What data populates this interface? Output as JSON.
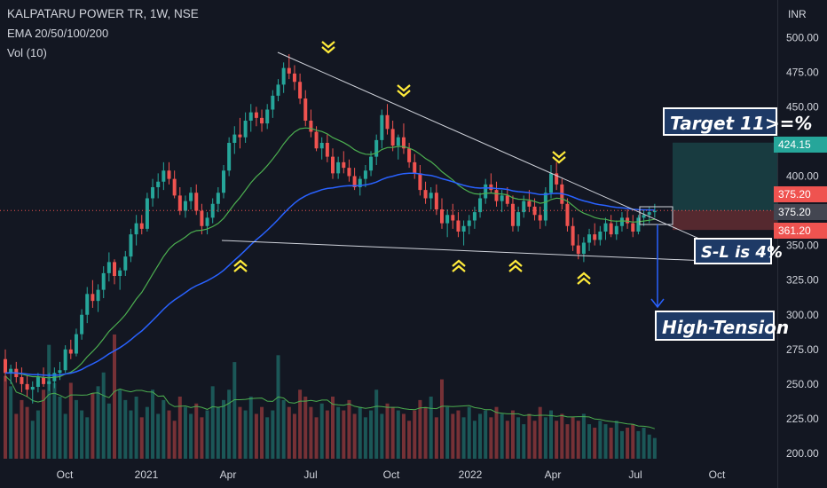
{
  "header": {
    "symbol_line": "KALPATARU POWER TR, 1W, NSE",
    "indicator_line": "EMA 20/50/100/200",
    "volume_line": "Vol (10)"
  },
  "annotations": {
    "target": "Target 11>=%",
    "stop_loss": "S-L is 4%",
    "news": "High-Tension"
  },
  "price_tags": [
    {
      "value": 424.15,
      "label": "424.15",
      "color": "#26a69a"
    },
    {
      "value": 375.2,
      "label": "375.20",
      "color": "#ef5350"
    },
    {
      "value": 375.2,
      "label": "375.20",
      "color": "#434651"
    },
    {
      "value": 361.2,
      "label": "361.20",
      "color": "#ef5350"
    }
  ],
  "colors": {
    "up": "#26a69a",
    "down": "#ef5350",
    "ema20": "#4caf50",
    "ema50": "#2962ff",
    "trendline": "#d1d4dc",
    "marker": "#ffeb3b",
    "target_zone": "#26a69a",
    "stop_zone": "#ef5350"
  },
  "chart_data": {
    "type": "candlestick",
    "title": "KALPATARU POWER TR, 1W, NSE",
    "y_axis_label": "INR",
    "y_ticks": [
      "500.00",
      "475.00",
      "450.00",
      "425.00",
      "400.00",
      "375.00",
      "350.00",
      "325.00",
      "300.00",
      "275.00",
      "250.00",
      "225.00",
      "200.00"
    ],
    "ylim": [
      200,
      500
    ],
    "x_ticks": [
      "Oct",
      "2021",
      "Apr",
      "Jul",
      "Oct",
      "2022",
      "Apr",
      "Jul",
      "Oct"
    ],
    "series": [
      {
        "name": "",
        "ohlc": [
          [
            268,
            275,
            252,
            258
          ],
          [
            258,
            264,
            250,
            261
          ],
          [
            261,
            266,
            251,
            255
          ],
          [
            255,
            262,
            244,
            250
          ],
          [
            250,
            256,
            241,
            246
          ],
          [
            246,
            252,
            236,
            248
          ],
          [
            248,
            258,
            244,
            255
          ],
          [
            255,
            262,
            248,
            250
          ],
          [
            250,
            258,
            245,
            252
          ],
          [
            252,
            262,
            247,
            258
          ],
          [
            258,
            266,
            253,
            260
          ],
          [
            260,
            278,
            258,
            275
          ],
          [
            275,
            282,
            268,
            272
          ],
          [
            272,
            290,
            270,
            286
          ],
          [
            286,
            304,
            282,
            300
          ],
          [
            300,
            320,
            294,
            315
          ],
          [
            315,
            325,
            305,
            310
          ],
          [
            310,
            322,
            302,
            318
          ],
          [
            318,
            335,
            312,
            330
          ],
          [
            330,
            345,
            324,
            338
          ],
          [
            338,
            340,
            322,
            328
          ],
          [
            328,
            334,
            318,
            332
          ],
          [
            332,
            346,
            328,
            342
          ],
          [
            342,
            362,
            338,
            358
          ],
          [
            358,
            372,
            350,
            366
          ],
          [
            366,
            372,
            358,
            362
          ],
          [
            362,
            388,
            360,
            384
          ],
          [
            384,
            398,
            378,
            392
          ],
          [
            392,
            402,
            384,
            396
          ],
          [
            396,
            410,
            390,
            404
          ],
          [
            404,
            410,
            394,
            398
          ],
          [
            398,
            404,
            384,
            386
          ],
          [
            386,
            392,
            372,
            375
          ],
          [
            375,
            386,
            370,
            382
          ],
          [
            382,
            392,
            376,
            388
          ],
          [
            388,
            394,
            372,
            375
          ],
          [
            375,
            380,
            358,
            364
          ],
          [
            364,
            374,
            358,
            370
          ],
          [
            370,
            384,
            366,
            380
          ],
          [
            380,
            392,
            374,
            388
          ],
          [
            388,
            408,
            384,
            404
          ],
          [
            404,
            428,
            400,
            424
          ],
          [
            424,
            436,
            416,
            430
          ],
          [
            430,
            442,
            420,
            428
          ],
          [
            428,
            446,
            424,
            440
          ],
          [
            440,
            452,
            432,
            446
          ],
          [
            446,
            450,
            436,
            442
          ],
          [
            442,
            448,
            432,
            438
          ],
          [
            438,
            452,
            434,
            448
          ],
          [
            448,
            462,
            442,
            458
          ],
          [
            458,
            470,
            454,
            466
          ],
          [
            466,
            482,
            460,
            478
          ],
          [
            478,
            488,
            470,
            474
          ],
          [
            474,
            480,
            462,
            468
          ],
          [
            468,
            474,
            452,
            456
          ],
          [
            456,
            462,
            436,
            440
          ],
          [
            440,
            448,
            428,
            432
          ],
          [
            432,
            436,
            418,
            420
          ],
          [
            420,
            428,
            412,
            424
          ],
          [
            424,
            430,
            410,
            414
          ],
          [
            414,
            420,
            398,
            402
          ],
          [
            402,
            414,
            398,
            410
          ],
          [
            410,
            418,
            402,
            406
          ],
          [
            406,
            412,
            396,
            400
          ],
          [
            400,
            406,
            390,
            392
          ],
          [
            392,
            400,
            386,
            398
          ],
          [
            398,
            408,
            392,
            404
          ],
          [
            404,
            418,
            400,
            414
          ],
          [
            414,
            430,
            408,
            426
          ],
          [
            426,
            448,
            420,
            444
          ],
          [
            444,
            452,
            430,
            434
          ],
          [
            434,
            440,
            418,
            422
          ],
          [
            422,
            430,
            412,
            428
          ],
          [
            428,
            438,
            416,
            420
          ],
          [
            420,
            424,
            406,
            410
          ],
          [
            410,
            416,
            398,
            402
          ],
          [
            402,
            408,
            386,
            390
          ],
          [
            390,
            396,
            380,
            384
          ],
          [
            384,
            392,
            376,
            388
          ],
          [
            388,
            394,
            372,
            376
          ],
          [
            376,
            384,
            362,
            366
          ],
          [
            366,
            376,
            356,
            372
          ],
          [
            372,
            380,
            362,
            368
          ],
          [
            368,
            374,
            356,
            360
          ],
          [
            360,
            368,
            350,
            364
          ],
          [
            364,
            372,
            358,
            368
          ],
          [
            368,
            378,
            362,
            374
          ],
          [
            374,
            388,
            370,
            384
          ],
          [
            384,
            398,
            380,
            394
          ],
          [
            394,
            402,
            388,
            390
          ],
          [
            390,
            396,
            378,
            382
          ],
          [
            382,
            390,
            374,
            386
          ],
          [
            386,
            392,
            378,
            380
          ],
          [
            380,
            386,
            360,
            364
          ],
          [
            364,
            378,
            360,
            374
          ],
          [
            374,
            386,
            370,
            382
          ],
          [
            382,
            390,
            374,
            378
          ],
          [
            378,
            384,
            368,
            372
          ],
          [
            372,
            378,
            362,
            368
          ],
          [
            368,
            392,
            364,
            388
          ],
          [
            388,
            408,
            384,
            402
          ],
          [
            402,
            410,
            390,
            394
          ],
          [
            394,
            398,
            376,
            380
          ],
          [
            380,
            384,
            360,
            364
          ],
          [
            364,
            370,
            346,
            350
          ],
          [
            350,
            358,
            340,
            344
          ],
          [
            344,
            356,
            338,
            352
          ],
          [
            352,
            362,
            346,
            358
          ],
          [
            358,
            366,
            350,
            354
          ],
          [
            354,
            364,
            350,
            360
          ],
          [
            360,
            370,
            354,
            366
          ],
          [
            366,
            372,
            356,
            358
          ],
          [
            358,
            368,
            354,
            364
          ],
          [
            364,
            374,
            360,
            370
          ],
          [
            370,
            376,
            362,
            366
          ],
          [
            366,
            372,
            356,
            360
          ],
          [
            360,
            372,
            358,
            370
          ],
          [
            370,
            376,
            364,
            372
          ],
          [
            372,
            378,
            366,
            374
          ],
          [
            374,
            380,
            370,
            375
          ]
        ],
        "volume": [
          48,
          42,
          26,
          34,
          30,
          22,
          28,
          40,
          66,
          44,
          36,
          26,
          44,
          34,
          28,
          24,
          38,
          42,
          50,
          32,
          72,
          40,
          34,
          28,
          36,
          24,
          30,
          40,
          26,
          34,
          28,
          22,
          36,
          30,
          26,
          32,
          24,
          28,
          42,
          30,
          34,
          40,
          56,
          30,
          28,
          36,
          26,
          30,
          24,
          28,
          60,
          34,
          30,
          26,
          40,
          36,
          30,
          24,
          32,
          28,
          36,
          30,
          28,
          34,
          26,
          30,
          24,
          28,
          40,
          26,
          32,
          30,
          28,
          26,
          22,
          28,
          34,
          30,
          36,
          24,
          46,
          30,
          26,
          28,
          24,
          30,
          22,
          26,
          28,
          24,
          30,
          26,
          22,
          28,
          24,
          20,
          26,
          22,
          30,
          24,
          28,
          22,
          26,
          20,
          24,
          22,
          26,
          20,
          18,
          22,
          20,
          18,
          22,
          16,
          18,
          20,
          16,
          18,
          14,
          12
        ]
      }
    ],
    "trend_lines": [
      {
        "name": "",
        "points": [
          [
            "Jun 2021",
            474
          ],
          [
            "Aug 2022",
            350
          ]
        ]
      },
      {
        "name": "",
        "points": [
          [
            "Mar 2021",
            356
          ],
          [
            "Aug 2022",
            338
          ]
        ]
      }
    ],
    "grid": false,
    "last_price": "375.20"
  }
}
